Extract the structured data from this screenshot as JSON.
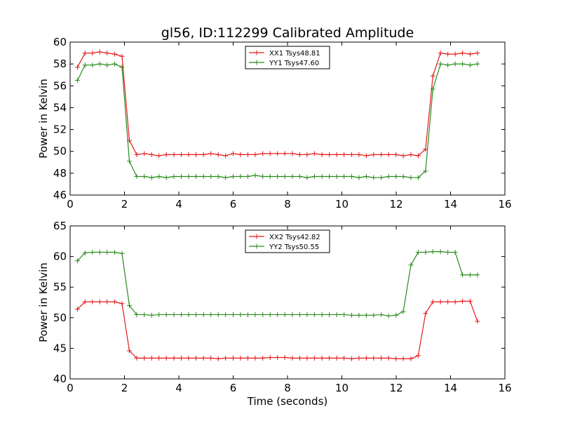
{
  "chart_data": [
    {
      "type": "line",
      "title": "gl56, ID:112299 Calibrated Amplitude",
      "xlabel": "",
      "ylabel": "Power in Kelvin",
      "xlim": [
        0,
        16
      ],
      "ylim": [
        46,
        60
      ],
      "xticks": [
        0,
        2,
        4,
        6,
        8,
        10,
        12,
        14,
        16
      ],
      "yticks": [
        46,
        48,
        50,
        52,
        54,
        56,
        58,
        60
      ],
      "legend": "top-center",
      "grid": false,
      "x": [
        0.27,
        0.55,
        0.82,
        1.09,
        1.36,
        1.64,
        1.91,
        2.18,
        2.45,
        2.73,
        3.0,
        3.27,
        3.54,
        3.82,
        4.09,
        4.36,
        4.63,
        4.91,
        5.18,
        5.45,
        5.72,
        6.0,
        6.27,
        6.54,
        6.81,
        7.09,
        7.36,
        7.63,
        7.9,
        8.18,
        8.45,
        8.72,
        8.99,
        9.27,
        9.54,
        9.81,
        10.08,
        10.36,
        10.63,
        10.9,
        11.17,
        11.45,
        11.72,
        11.99,
        12.26,
        12.54,
        12.81,
        13.08,
        13.35,
        13.63,
        13.9,
        14.17,
        14.44,
        14.72,
        14.99
      ],
      "series": [
        {
          "name": "XX1 Tsys48.81",
          "color": "#e41a1c",
          "values": [
            57.7,
            59.0,
            59.0,
            59.1,
            59.0,
            58.9,
            58.7,
            51.0,
            49.7,
            49.8,
            49.7,
            49.6,
            49.7,
            49.7,
            49.7,
            49.7,
            49.7,
            49.7,
            49.8,
            49.7,
            49.6,
            49.8,
            49.7,
            49.7,
            49.7,
            49.8,
            49.8,
            49.8,
            49.8,
            49.8,
            49.7,
            49.7,
            49.8,
            49.7,
            49.7,
            49.7,
            49.7,
            49.7,
            49.7,
            49.6,
            49.7,
            49.7,
            49.7,
            49.7,
            49.6,
            49.7,
            49.6,
            50.2,
            56.9,
            59.0,
            58.9,
            58.9,
            59.0,
            58.9,
            59.0
          ]
        },
        {
          "name": "YY1 Tsys47.60",
          "color": "#2b8a1e",
          "values": [
            56.5,
            57.9,
            57.9,
            58.0,
            57.9,
            58.0,
            57.7,
            49.1,
            47.7,
            47.7,
            47.6,
            47.7,
            47.6,
            47.7,
            47.7,
            47.7,
            47.7,
            47.7,
            47.7,
            47.7,
            47.6,
            47.7,
            47.7,
            47.7,
            47.8,
            47.7,
            47.7,
            47.7,
            47.7,
            47.7,
            47.7,
            47.6,
            47.7,
            47.7,
            47.7,
            47.7,
            47.7,
            47.7,
            47.6,
            47.7,
            47.6,
            47.6,
            47.7,
            47.7,
            47.7,
            47.6,
            47.6,
            48.2,
            55.7,
            58.0,
            57.9,
            58.0,
            58.0,
            57.9,
            58.0
          ]
        }
      ]
    },
    {
      "type": "line",
      "title": "",
      "xlabel": "Time (seconds)",
      "ylabel": "Power in Kelvin",
      "xlim": [
        0,
        16
      ],
      "ylim": [
        40,
        65
      ],
      "xticks": [
        0,
        2,
        4,
        6,
        8,
        10,
        12,
        14,
        16
      ],
      "yticks": [
        40,
        45,
        50,
        55,
        60,
        65
      ],
      "legend": "top-center",
      "grid": false,
      "x": [
        0.27,
        0.55,
        0.82,
        1.09,
        1.36,
        1.64,
        1.91,
        2.18,
        2.45,
        2.73,
        3.0,
        3.27,
        3.54,
        3.82,
        4.09,
        4.36,
        4.63,
        4.91,
        5.18,
        5.45,
        5.72,
        6.0,
        6.27,
        6.54,
        6.81,
        7.09,
        7.36,
        7.63,
        7.9,
        8.18,
        8.45,
        8.72,
        8.99,
        9.27,
        9.54,
        9.81,
        10.08,
        10.36,
        10.63,
        10.9,
        11.17,
        11.45,
        11.72,
        11.99,
        12.26,
        12.54,
        12.81,
        13.08,
        13.35,
        13.63,
        13.9,
        14.17,
        14.44,
        14.72,
        14.99
      ],
      "series": [
        {
          "name": "XX2 Tsys42.82",
          "color": "#e41a1c",
          "values": [
            51.4,
            52.6,
            52.6,
            52.6,
            52.6,
            52.6,
            52.3,
            44.6,
            43.4,
            43.4,
            43.4,
            43.4,
            43.4,
            43.4,
            43.4,
            43.4,
            43.4,
            43.4,
            43.4,
            43.3,
            43.4,
            43.4,
            43.4,
            43.4,
            43.4,
            43.4,
            43.5,
            43.5,
            43.5,
            43.4,
            43.4,
            43.4,
            43.4,
            43.4,
            43.4,
            43.4,
            43.4,
            43.3,
            43.4,
            43.4,
            43.4,
            43.4,
            43.4,
            43.3,
            43.3,
            43.3,
            43.8,
            50.7,
            52.6,
            52.6,
            52.6,
            52.6,
            52.7,
            52.7,
            49.4
          ]
        },
        {
          "name": "YY2 Tsys50.55",
          "color": "#2b8a1e",
          "values": [
            59.3,
            60.6,
            60.7,
            60.7,
            60.7,
            60.7,
            60.5,
            52.0,
            50.5,
            50.5,
            50.4,
            50.5,
            50.5,
            50.5,
            50.5,
            50.5,
            50.5,
            50.5,
            50.5,
            50.5,
            50.5,
            50.5,
            50.5,
            50.5,
            50.5,
            50.5,
            50.5,
            50.5,
            50.5,
            50.5,
            50.5,
            50.5,
            50.5,
            50.5,
            50.5,
            50.5,
            50.5,
            50.4,
            50.4,
            50.4,
            50.4,
            50.5,
            50.3,
            50.4,
            51.0,
            58.6,
            60.7,
            60.7,
            60.8,
            60.8,
            60.7,
            60.7,
            57.0,
            57.0,
            57.0
          ]
        }
      ]
    }
  ]
}
